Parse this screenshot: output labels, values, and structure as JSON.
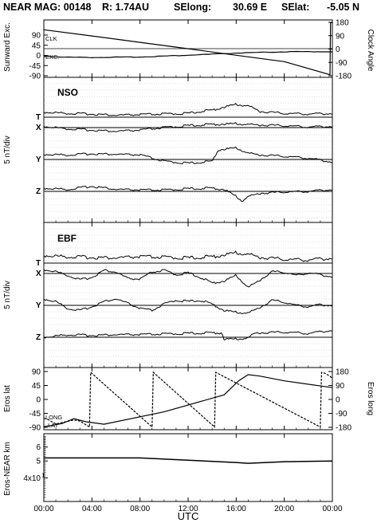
{
  "title": {
    "mission": "NEAR MAG: 00148",
    "r": "R: 1.74AU",
    "selong_label": "SElong:",
    "selong_value": "30.69 E",
    "selat_label": "SElat:",
    "selat_value": "-5.05 N"
  },
  "chart_data": [
    {
      "id": "angles",
      "type": "line",
      "ylabel_left": "Sunward Exc.",
      "ylabel_right": "Clock Angle",
      "ylim_left": [
        -90,
        90
      ],
      "ylim_right": [
        -180,
        180
      ],
      "yticks_left": [
        "90",
        "45",
        "0",
        "-45",
        "-90"
      ],
      "yticks_right": [
        "180",
        "90",
        "0",
        "-90",
        "-180"
      ],
      "series": [
        {
          "name": "CLK",
          "axis": "right",
          "x": [
            0,
            4,
            8,
            12,
            16,
            20,
            23.8,
            23.85,
            24
          ],
          "y": [
            130,
            88,
            45,
            2,
            -42,
            -85,
            -173,
            178,
            178
          ]
        },
        {
          "name": "EXC.",
          "axis": "left",
          "x": [
            0,
            2,
            4,
            8,
            12,
            16,
            20,
            24
          ],
          "y": [
            -4,
            -8,
            -9,
            -7,
            1,
            10,
            16,
            17
          ]
        }
      ]
    },
    {
      "id": "nso",
      "type": "line",
      "panel_label": "NSO",
      "ylabel": "5 nT/div",
      "channels": [
        {
          "name": "T",
          "x": [
            0,
            2,
            4,
            6,
            8,
            10,
            12,
            13,
            14,
            15,
            16,
            17,
            18,
            20,
            22,
            24
          ],
          "y": [
            0.8,
            0.6,
            0.5,
            0.3,
            0.4,
            0.5,
            0.6,
            0.9,
            1.1,
            1.6,
            2.0,
            1.8,
            0.9,
            0.6,
            0.5,
            0.6
          ]
        },
        {
          "name": "X",
          "x": [
            0,
            2,
            4,
            6,
            8,
            10,
            12,
            14,
            16,
            18,
            20,
            22,
            24
          ],
          "y": [
            0.2,
            -0.2,
            -0.4,
            -0.6,
            -0.4,
            0,
            0.3,
            0.5,
            0.6,
            0.4,
            0.3,
            0.1,
            0.2
          ]
        },
        {
          "name": "Y",
          "x": [
            0,
            2,
            4,
            6,
            8,
            10,
            12,
            14,
            14.5,
            16,
            17,
            18,
            20,
            22,
            24
          ],
          "y": [
            0.8,
            0.7,
            0.9,
            0.8,
            0.7,
            -0.3,
            -0.6,
            -0.3,
            1.5,
            1.8,
            1.0,
            0.7,
            0.5,
            0.2,
            -0.4
          ]
        },
        {
          "name": "Z",
          "x": [
            0,
            2,
            4,
            6,
            8,
            10,
            12,
            14,
            15,
            16,
            16.5,
            17,
            18,
            20,
            22,
            24
          ],
          "y": [
            0.5,
            0.3,
            0.8,
            0.3,
            0.2,
            0.2,
            0.4,
            0.5,
            0.3,
            -0.8,
            -1.5,
            -0.8,
            -0.3,
            -0.1,
            0.0,
            0.3
          ]
        }
      ]
    },
    {
      "id": "ebf",
      "type": "line",
      "panel_label": "EBF",
      "ylabel": "5 nT/div",
      "channels": [
        {
          "name": "T",
          "x": [
            0,
            2,
            4,
            6,
            8,
            10,
            12,
            14,
            15,
            16,
            17,
            18,
            20,
            22,
            24
          ],
          "y": [
            1.2,
            1.0,
            0.9,
            0.8,
            1.0,
            0.9,
            0.8,
            1.0,
            1.3,
            1.6,
            1.4,
            0.9,
            0.6,
            0.5,
            0.8
          ]
        },
        {
          "name": "X",
          "x": [
            0,
            1,
            2,
            3,
            4,
            5,
            6,
            7,
            8,
            9,
            10,
            11,
            12,
            13,
            14,
            15,
            16,
            17,
            18,
            19,
            20,
            21,
            22,
            23,
            24
          ],
          "y": [
            0.6,
            0.3,
            -0.3,
            -1.0,
            -0.6,
            0.5,
            0.2,
            -0.8,
            -0.9,
            0.2,
            0.5,
            -0.2,
            0.1,
            -0.6,
            -1.5,
            -1.2,
            -0.3,
            -2.2,
            -1.0,
            0.3,
            0.2,
            -0.3,
            0.1,
            -0.2,
            -0.5
          ]
        },
        {
          "name": "Y",
          "x": [
            0,
            1,
            2,
            3,
            4,
            5,
            6,
            7,
            8,
            9,
            10,
            11,
            12,
            13,
            14,
            15,
            16,
            17,
            18,
            19,
            20,
            21,
            22,
            23,
            24
          ],
          "y": [
            1.0,
            0.6,
            -0.5,
            -0.8,
            -0.2,
            0.6,
            1.0,
            0.3,
            -0.5,
            -0.8,
            0.2,
            0.8,
            0.6,
            0.8,
            0.2,
            -0.8,
            -1.1,
            -1.2,
            -0.3,
            0.8,
            0.5,
            0.0,
            -0.2,
            0.1,
            0.0
          ]
        },
        {
          "name": "Z",
          "x": [
            0,
            2,
            4,
            6,
            8,
            10,
            12,
            14,
            14.8,
            15,
            16,
            17,
            17.5,
            18,
            20,
            22,
            24
          ],
          "y": [
            0.0,
            0.4,
            0.3,
            0.4,
            0.4,
            0.5,
            0.6,
            0.7,
            0.7,
            -0.3,
            -0.3,
            -0.1,
            0.6,
            0.7,
            0.8,
            0.6,
            1.1
          ]
        }
      ]
    },
    {
      "id": "eros",
      "type": "line",
      "ylabel_left": "Eros lat",
      "ylabel_right": "Eros long",
      "ylim_left": [
        -90,
        90
      ],
      "ylim_right": [
        -180,
        180
      ],
      "yticks_left": [
        "90",
        "45",
        "0",
        "-45",
        "-90"
      ],
      "yticks_right": [
        "180",
        "90",
        "0",
        "-90",
        "-180"
      ],
      "series": [
        {
          "name": "LAT",
          "axis": "left",
          "x": [
            0,
            1.5,
            2.5,
            3.5,
            5,
            10,
            15,
            16.2,
            17,
            18,
            20,
            24
          ],
          "y": [
            -88,
            -78,
            -62,
            -72,
            -80,
            -40,
            15,
            60,
            80,
            75,
            60,
            38
          ]
        },
        {
          "name": "LONG",
          "axis": "right",
          "x": [
            0,
            0.3,
            1,
            2.5,
            3,
            3.8,
            3.9,
            9.0,
            9.1,
            14.2,
            14.3,
            23.0,
            23.1,
            23.4,
            23.8,
            24
          ],
          "y": [
            -122,
            -128,
            -158,
            -132,
            -140,
            -178,
            175,
            -178,
            175,
            -178,
            175,
            -178,
            175,
            168,
            150,
            136
          ]
        }
      ]
    },
    {
      "id": "range",
      "type": "line",
      "ylabel": "Eros-NEAR km",
      "yscale": "log",
      "ylim": [
        30,
        70
      ],
      "yticks": [
        "6",
        "5",
        "4x10",
        "1"
      ],
      "series": [
        {
          "name": "range",
          "x": [
            0,
            4,
            8,
            12,
            16,
            17,
            20,
            24
          ],
          "y": [
            52,
            52,
            52,
            50.5,
            49,
            48.5,
            49.5,
            50
          ]
        }
      ]
    }
  ],
  "x_axis": {
    "label": "UTC",
    "ticks": [
      "00:00",
      "04:00",
      "08:00",
      "12:00",
      "16:00",
      "20:00",
      "00:00"
    ]
  }
}
